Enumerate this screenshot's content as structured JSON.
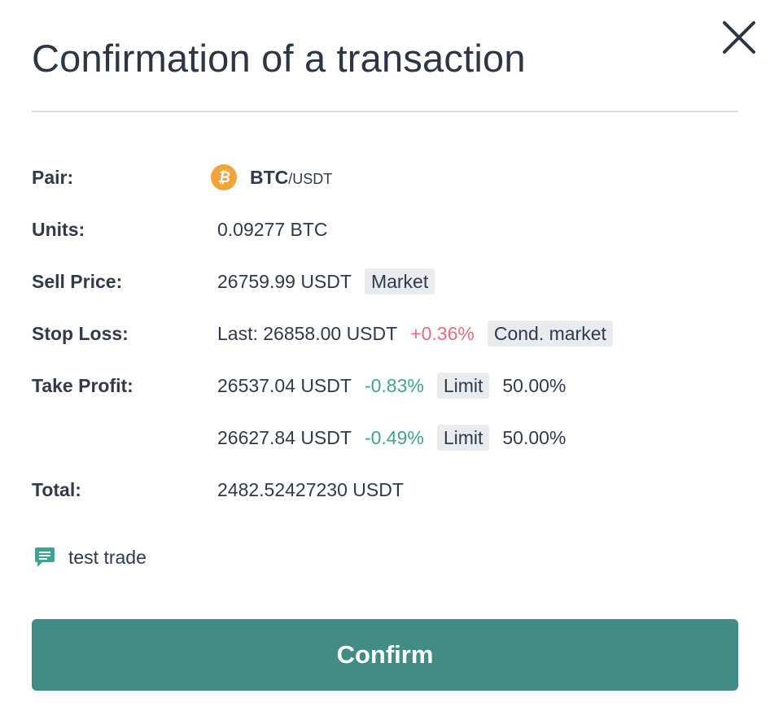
{
  "dialog": {
    "title": "Confirmation of a transaction",
    "close_icon": "close-icon"
  },
  "pair": {
    "label": "Pair:",
    "icon": "bitcoin-icon",
    "base": "BTC",
    "quote": "/USDT"
  },
  "units": {
    "label": "Units:",
    "value": "0.09277 BTC"
  },
  "sell_price": {
    "label": "Sell Price:",
    "value": "26759.99 USDT",
    "type": "Market"
  },
  "stop_loss": {
    "label": "Stop Loss:",
    "value": "Last: 26858.00 USDT",
    "change": "+0.36%",
    "type": "Cond. market"
  },
  "take_profit": {
    "label": "Take Profit:",
    "targets": [
      {
        "value": "26537.04 USDT",
        "change": "-0.83%",
        "type": "Limit",
        "share": "50.00%"
      },
      {
        "value": "26627.84 USDT",
        "change": "-0.49%",
        "type": "Limit",
        "share": "50.00%"
      }
    ]
  },
  "total": {
    "label": "Total:",
    "value": "2482.52427230 USDT"
  },
  "note": {
    "icon": "comment-icon",
    "text": "test trade"
  },
  "confirm_label": "Confirm",
  "colors": {
    "accent": "#428c85",
    "positive_change": "#e0707e",
    "negative_change": "#3fa392",
    "bitcoin": "#f2a33a",
    "text": "#2f3a4a"
  }
}
